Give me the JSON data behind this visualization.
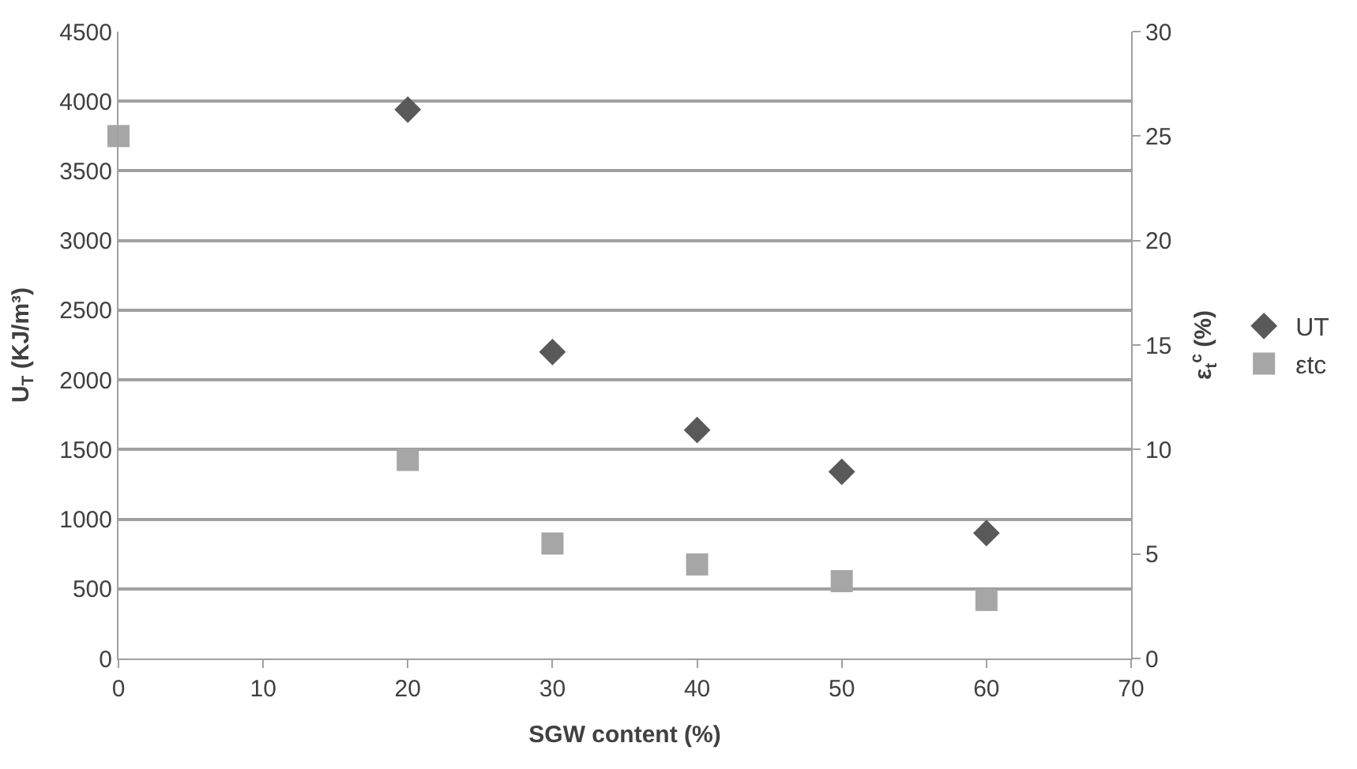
{
  "chart_data": {
    "type": "scatter",
    "xlabel": "SGW content (%)",
    "ylabel": "U$_{T}$ (KJ/m³)",
    "y2label": "ε$_{t}$$^{c}$ (%)",
    "xlim": [
      0,
      70
    ],
    "xticks": [
      0,
      10,
      20,
      30,
      40,
      50,
      60,
      70
    ],
    "ylim": [
      0,
      4500
    ],
    "yticks": [
      0,
      500,
      1000,
      1500,
      2000,
      2500,
      3000,
      3500,
      4000,
      4500
    ],
    "y2lim": [
      0,
      30
    ],
    "y2ticks": [
      0,
      5,
      10,
      15,
      20,
      25,
      30
    ],
    "grid": "y",
    "legend": "right",
    "series": [
      {
        "name": "UT",
        "color": "#595959",
        "marker": "diamond",
        "x": [
          20,
          30,
          40,
          50,
          60
        ],
        "values": [
          3940,
          2200,
          1640,
          1340,
          900
        ]
      },
      {
        "name": "εtc",
        "color": "#a6a6a6",
        "marker": "square",
        "axis": "y2",
        "x": [
          0,
          20,
          30,
          40,
          50,
          60
        ],
        "values": [
          25.0,
          9.5,
          5.5,
          4.5,
          3.7,
          2.8
        ]
      }
    ]
  }
}
